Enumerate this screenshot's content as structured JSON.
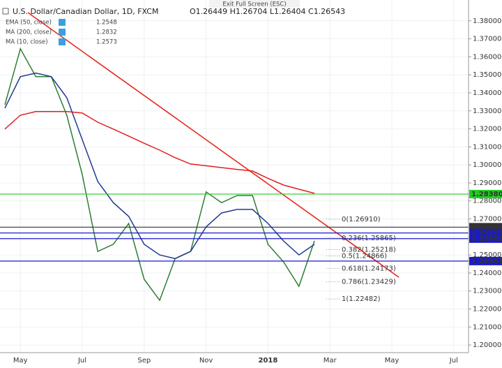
{
  "header": {
    "exit": "Exit Full Screen (ESC)",
    "title": "U.S. Dollar/Canadian Dollar, 1D, FXCM",
    "ohlc": "O1.26449 H1.26704 L1.26404 C1.26543"
  },
  "indicators": [
    {
      "name": "EMA (50, close)",
      "value": "1.2548",
      "color": "#1f3a93"
    },
    {
      "name": "MA (200, close)",
      "value": "1.2832",
      "color": "#e02020"
    },
    {
      "name": "MA (10, close)",
      "value": "1.2573",
      "color": "#1f3a93"
    }
  ],
  "chart_data": {
    "type": "line",
    "categories": [
      null,
      "May",
      null,
      null,
      null,
      "Jul",
      null,
      null,
      null,
      "Sep",
      null,
      null,
      null,
      "Nov",
      null,
      null,
      null,
      "2018",
      null,
      null,
      null,
      "Mar",
      null,
      null,
      null,
      "May",
      null,
      null,
      null,
      "Jul"
    ],
    "series": [
      {
        "color": "#2e7d32",
        "values": [
          1.3334,
          1.3645,
          1.349,
          1.349,
          1.3276,
          1.2946,
          1.252,
          1.2559,
          1.2675,
          1.2365,
          1.2248,
          1.248,
          1.252,
          1.285,
          1.279,
          1.283,
          1.283,
          1.2559,
          1.2462,
          1.2326,
          1.2578,
          null,
          null,
          null,
          null,
          null,
          null,
          null,
          null,
          null
        ]
      },
      {
        "color": "#1f3a93",
        "values": [
          1.3315,
          1.349,
          1.351,
          1.349,
          1.3373,
          1.314,
          1.2908,
          1.2791,
          1.2714,
          1.2559,
          1.25,
          1.248,
          1.252,
          1.2656,
          1.2733,
          1.2753,
          1.2753,
          1.2675,
          1.2578,
          1.25,
          1.2559,
          null,
          null,
          null,
          null,
          null,
          null,
          null,
          null,
          null
        ]
      },
      {
        "color": "#e02020",
        "values": [
          1.3199,
          1.3276,
          1.3296,
          1.3296,
          1.3296,
          1.3288,
          1.3237,
          1.3199,
          1.316,
          1.312,
          1.3082,
          1.304,
          1.3005,
          1.2995,
          1.2985,
          1.2975,
          1.2966,
          1.2925,
          1.2888,
          1.2865,
          1.2842,
          null,
          null,
          null,
          null,
          null,
          null,
          null,
          null,
          null
        ]
      }
    ],
    "levels": [
      {
        "value": 1.2838,
        "label": "1.28380",
        "color": "#22cc22"
      },
      {
        "value": 1.26543,
        "label": "1.26543",
        "color": "#333333"
      },
      {
        "value": 1.26222,
        "label": "1.26222",
        "color": "#1a1acc"
      },
      {
        "value": 1.25905,
        "label": "1.25905",
        "color": "#1a1acc"
      },
      {
        "value": 1.24661,
        "label": "1.24661",
        "color": "#1a1acc"
      }
    ],
    "fib_levels": [
      {
        "value": 1.2691,
        "label": "0(1.26910)"
      },
      {
        "value": 1.25865,
        "label": "0.236(1.25865)"
      },
      {
        "value": 1.25218,
        "label": "0.382(1.25218)"
      },
      {
        "value": 1.24866,
        "label": "0.5(1.24866)"
      },
      {
        "value": 1.24173,
        "label": "0.618(1.24173)"
      },
      {
        "value": 1.23429,
        "label": "0.786(1.23429)"
      },
      {
        "value": 1.22482,
        "label": "1(1.22482)"
      }
    ],
    "ylim": [
      1.195,
      1.39
    ],
    "yticks": [
      {
        "value": 1.2,
        "label": "1.20000"
      },
      {
        "value": 1.21,
        "label": "1.21000"
      },
      {
        "value": 1.22,
        "label": "1.22000"
      },
      {
        "value": 1.23,
        "label": "1.23000"
      },
      {
        "value": 1.24,
        "label": "1.24000"
      },
      {
        "value": 1.25,
        "label": "1.25000"
      },
      {
        "value": 1.26,
        "label": "1.26000"
      },
      {
        "value": 1.27,
        "label": "1.27000"
      },
      {
        "value": 1.28,
        "label": "1.28000"
      },
      {
        "value": 1.29,
        "label": "1.29000"
      },
      {
        "value": 1.3,
        "label": "1.30000"
      },
      {
        "value": 1.31,
        "label": "1.31000"
      },
      {
        "value": 1.32,
        "label": "1.32000"
      },
      {
        "value": 1.33,
        "label": "1.33000"
      },
      {
        "value": 1.34,
        "label": "1.34000"
      },
      {
        "value": 1.35,
        "label": "1.35000"
      },
      {
        "value": 1.36,
        "label": "1.36000"
      },
      {
        "value": 1.37,
        "label": "1.37000"
      },
      {
        "value": 1.38,
        "label": "1.38000"
      }
    ],
    "grid": true
  }
}
